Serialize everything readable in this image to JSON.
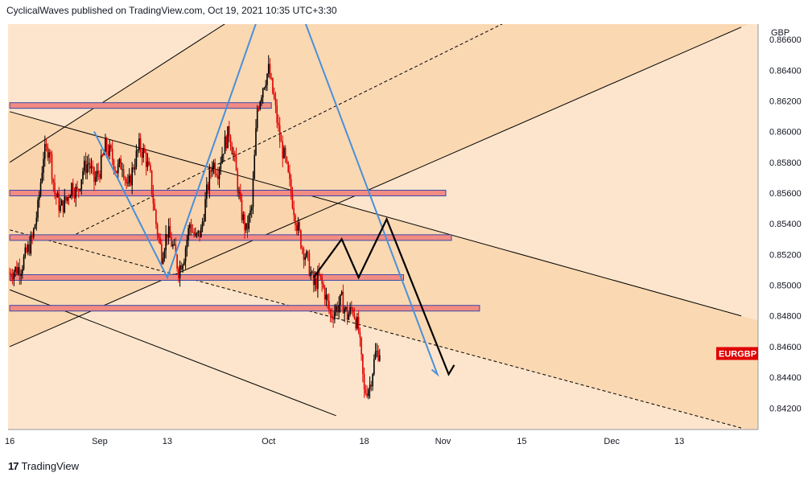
{
  "header": {
    "publish_line": "CyclicalWaves published on TradingView.com, Oct 19, 2021 10:35 UTC+3:30"
  },
  "footer": {
    "brand_mark": "17",
    "brand_name": "TradingView"
  },
  "colors": {
    "background_light": "#fce5cc",
    "background_band": "#f9d3a9",
    "candle_up": "#000000",
    "candle_down": "#e00000",
    "zone_fill": "#f28b82",
    "zone_border": "#3949ab",
    "projection_blue": "#4a90d9",
    "projection_black": "#000000",
    "symbol_badge": "#e00000"
  },
  "chart_data": {
    "type": "candlestick",
    "symbol_badge": "EURGBP",
    "currency": "GBP",
    "y_ticks": [
      "0.86600",
      "0.86400",
      "0.86200",
      "0.86000",
      "0.85800",
      "0.85600",
      "0.85400",
      "0.85200",
      "0.85000",
      "0.84800",
      "0.84600",
      "0.84400",
      "0.84200"
    ],
    "ylim": [
      0.8406,
      0.867
    ],
    "x_ticks": [
      {
        "label": "16",
        "day": 0
      },
      {
        "label": "Sep",
        "day": 16
      },
      {
        "label": "13",
        "day": 28
      },
      {
        "label": "Oct",
        "day": 46
      },
      {
        "label": "18",
        "day": 63
      },
      {
        "label": "Nov",
        "day": 77
      },
      {
        "label": "15",
        "day": 91
      },
      {
        "label": "Dec",
        "day": 107
      },
      {
        "label": "13",
        "day": 119
      }
    ],
    "x_range_days": [
      -0.3,
      133
    ],
    "price_path": [
      [
        0,
        0.8508
      ],
      [
        2,
        0.8512
      ],
      [
        4,
        0.853
      ],
      [
        5,
        0.855
      ],
      [
        6,
        0.8585
      ],
      [
        7,
        0.859
      ],
      [
        8,
        0.856
      ],
      [
        9,
        0.855
      ],
      [
        10,
        0.8555
      ],
      [
        11,
        0.8565
      ],
      [
        12,
        0.856
      ],
      [
        13,
        0.8575
      ],
      [
        14,
        0.858
      ],
      [
        15,
        0.8568
      ],
      [
        16,
        0.8575
      ],
      [
        17,
        0.859
      ],
      [
        18,
        0.8585
      ],
      [
        19,
        0.8575
      ],
      [
        20,
        0.858
      ],
      [
        21,
        0.8562
      ],
      [
        22,
        0.8578
      ],
      [
        23,
        0.859
      ],
      [
        24,
        0.8585
      ],
      [
        25,
        0.857
      ],
      [
        26,
        0.854
      ],
      [
        27,
        0.852
      ],
      [
        28,
        0.8535
      ],
      [
        29,
        0.8525
      ],
      [
        30,
        0.851
      ],
      [
        31,
        0.852
      ],
      [
        32,
        0.854
      ],
      [
        33,
        0.853
      ],
      [
        34,
        0.8535
      ],
      [
        35,
        0.856
      ],
      [
        36,
        0.858
      ],
      [
        37,
        0.8575
      ],
      [
        38,
        0.859
      ],
      [
        39,
        0.86
      ],
      [
        40,
        0.858
      ],
      [
        41,
        0.855
      ],
      [
        42,
        0.8535
      ],
      [
        43,
        0.855
      ],
      [
        44,
        0.8615
      ],
      [
        45,
        0.863
      ],
      [
        46,
        0.864
      ],
      [
        47,
        0.862
      ],
      [
        48,
        0.8595
      ],
      [
        49,
        0.858
      ],
      [
        50,
        0.856
      ],
      [
        51,
        0.854
      ],
      [
        52,
        0.8525
      ],
      [
        53,
        0.8515
      ],
      [
        54,
        0.85
      ],
      [
        55,
        0.8505
      ],
      [
        56,
        0.8495
      ],
      [
        57,
        0.848
      ],
      [
        58,
        0.8485
      ],
      [
        59,
        0.849
      ],
      [
        60,
        0.848
      ],
      [
        61,
        0.8485
      ],
      [
        62,
        0.847
      ],
      [
        63,
        0.843
      ],
      [
        64,
        0.8435
      ],
      [
        65,
        0.8455
      ],
      [
        66,
        0.8458
      ]
    ],
    "horizontal_zones": [
      {
        "price": 0.8617,
        "day_start": 0,
        "day_end": 46.5
      },
      {
        "price": 0.856,
        "day_start": 0,
        "day_end": 77.5
      },
      {
        "price": 0.8531,
        "day_start": 0,
        "day_end": 78.5
      },
      {
        "price": 0.8505,
        "day_start": 0,
        "day_end": 70
      },
      {
        "price": 0.8485,
        "day_start": 0,
        "day_end": 83.5
      }
    ],
    "channel_lines": [
      {
        "style": "solid",
        "from": [
          0,
          0.858
        ],
        "to": [
          53,
          0.8705
        ]
      },
      {
        "style": "dashed",
        "from": [
          10,
          0.853
        ],
        "to": [
          93,
          0.868
        ]
      },
      {
        "style": "solid",
        "from": [
          0,
          0.846
        ],
        "to": [
          130,
          0.8668
        ]
      },
      {
        "style": "solid",
        "from": [
          0,
          0.8613
        ],
        "to": [
          130,
          0.848
        ]
      },
      {
        "style": "dashed",
        "from": [
          0,
          0.8536
        ],
        "to": [
          130,
          0.8407
        ]
      },
      {
        "style": "solid",
        "from": [
          0,
          0.8497
        ],
        "to": [
          58,
          0.8415
        ]
      }
    ],
    "projection_blue": [
      [
        15,
        0.86
      ],
      [
        28,
        0.8505
      ],
      [
        48,
        0.8715
      ],
      [
        76,
        0.8442
      ],
      [
        75,
        0.8445
      ]
    ],
    "projection_black": [
      [
        54,
        0.8505
      ],
      [
        59,
        0.853
      ],
      [
        62,
        0.8505
      ],
      [
        67,
        0.8543
      ],
      [
        78,
        0.8442
      ],
      [
        79,
        0.8448
      ]
    ]
  }
}
